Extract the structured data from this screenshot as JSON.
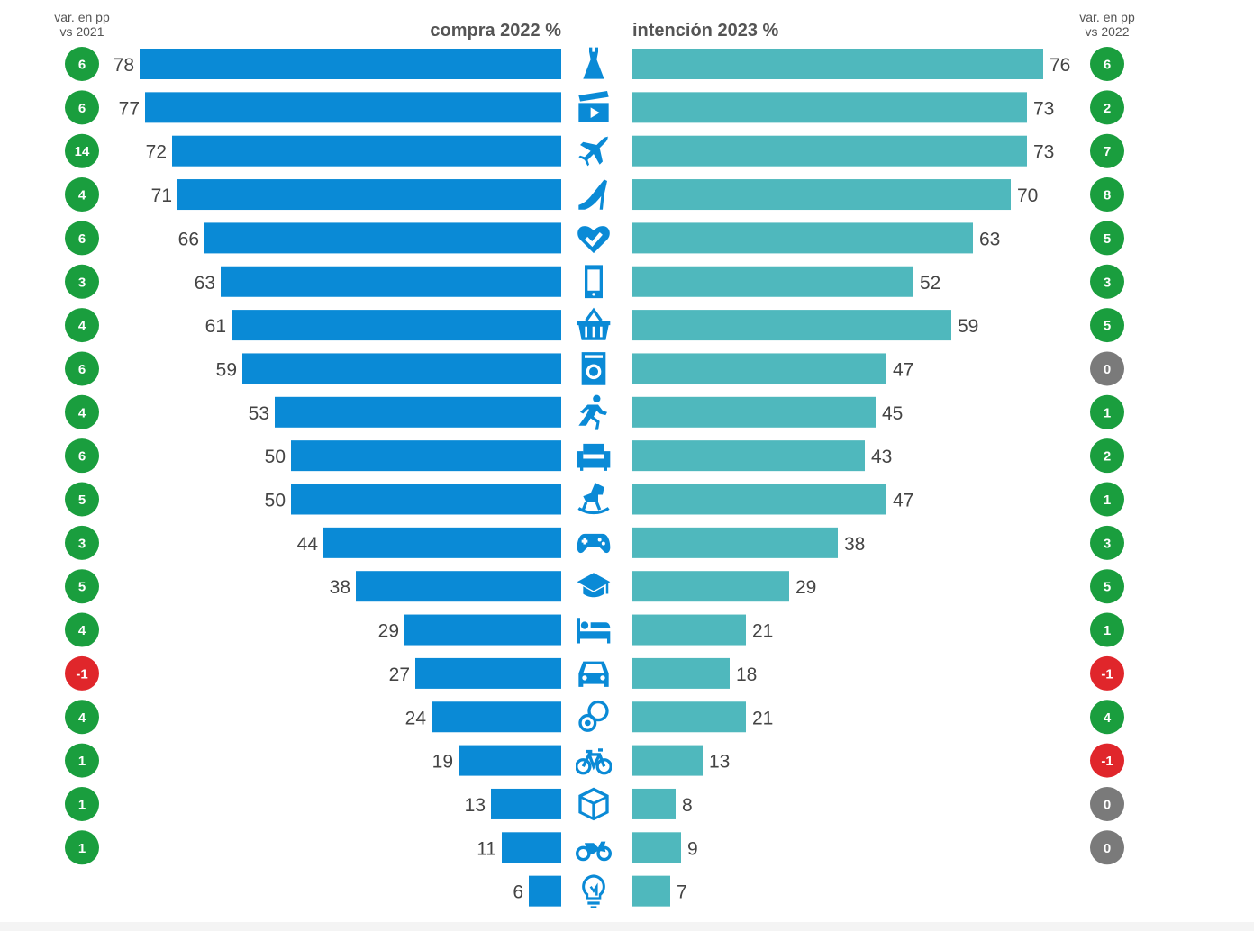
{
  "chart_data": {
    "type": "bar",
    "layout": "diverging-horizontal",
    "left_header": "compra 2022 %",
    "right_header": "intención 2023 %",
    "left_change_header": [
      "var. en pp",
      "vs 2021"
    ],
    "right_change_header": [
      "var. en pp",
      "vs 2022"
    ],
    "xlim": [
      0,
      100
    ],
    "series": [
      {
        "name": "compra 2022 %",
        "color": "#0a8ad6",
        "values": [
          78,
          77,
          72,
          71,
          66,
          63,
          61,
          59,
          53,
          50,
          50,
          44,
          38,
          29,
          27,
          24,
          19,
          13,
          11,
          6
        ]
      },
      {
        "name": "intención 2023 %",
        "color": "#4fb8bd",
        "values": [
          76,
          73,
          73,
          70,
          63,
          52,
          59,
          47,
          45,
          43,
          47,
          38,
          29,
          21,
          18,
          21,
          13,
          8,
          9,
          7
        ]
      }
    ],
    "left_changes": [
      6,
      6,
      14,
      4,
      6,
      3,
      4,
      6,
      4,
      6,
      5,
      3,
      5,
      4,
      -1,
      4,
      1,
      1,
      1
    ],
    "right_changes": [
      6,
      2,
      7,
      8,
      5,
      3,
      5,
      0,
      1,
      2,
      1,
      3,
      5,
      1,
      -1,
      4,
      -1,
      0,
      0
    ],
    "category_icons": [
      "dress-icon",
      "clapperboard-icon",
      "airplane-icon",
      "high-heel-icon",
      "heart-check-icon",
      "smartphone-icon",
      "shopping-basket-icon",
      "washing-machine-icon",
      "running-person-icon",
      "sofa-icon",
      "rocking-horse-icon",
      "gamepad-icon",
      "graduation-cap-icon",
      "bed-icon",
      "car-icon",
      "pacifier-icon",
      "bicycle-icon",
      "package-icon",
      "motorcycle-icon",
      "lightbulb-icon"
    ],
    "badge_colors": {
      "positive": "#1a9e3e",
      "zero": "#7a7a7a",
      "negative": "#e0262b"
    },
    "icon_color": "#0a8ad6"
  }
}
